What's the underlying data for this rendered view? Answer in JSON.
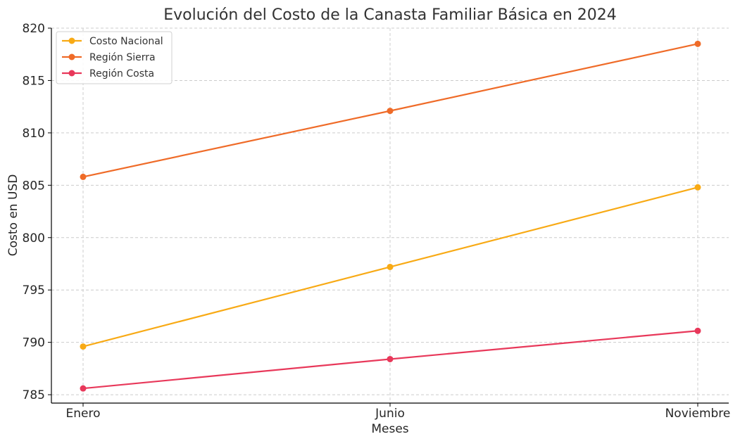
{
  "chart_data": {
    "type": "line",
    "title": "Evolución del Costo de la Canasta Familiar Básica en 2024",
    "xlabel": "Meses",
    "ylabel": "Costo en USD",
    "categories": [
      "Enero",
      "Junio",
      "Noviembre"
    ],
    "ylim": [
      784.2,
      820.0
    ],
    "yticks": [
      785,
      790,
      795,
      800,
      805,
      810,
      815,
      820
    ],
    "grid": true,
    "legend_position": "top-left",
    "series": [
      {
        "name": "Costo Nacional",
        "color": "#f8aa15",
        "values": [
          789.6,
          797.2,
          804.8
        ]
      },
      {
        "name": "Región Sierra",
        "color": "#ef6b28",
        "values": [
          805.8,
          812.1,
          818.5
        ]
      },
      {
        "name": "Región Costa",
        "color": "#e8385a",
        "values": [
          785.6,
          788.4,
          791.1
        ]
      }
    ]
  }
}
